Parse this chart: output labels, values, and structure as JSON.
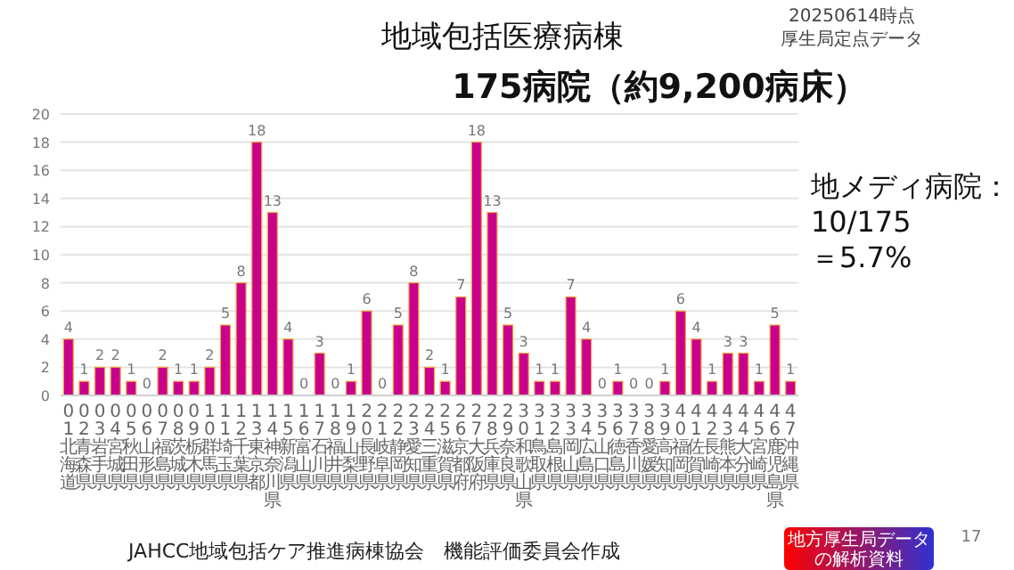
{
  "chart_data": {
    "type": "bar",
    "title": "地域包括医療病棟",
    "subtitle": "175病院（約9,200病床）",
    "categories": [
      "01北海道",
      "02青森県",
      "03岩手県",
      "04宮城県",
      "05秋田県",
      "06山形県",
      "07福島県",
      "08茨城県",
      "09栃木県",
      "10群馬県",
      "11埼玉県",
      "12千葉県",
      "13東京都",
      "14神奈川県",
      "15新潟県",
      "16富山県",
      "17石川県",
      "18福井県",
      "19山梨県",
      "20長野県",
      "21岐阜県",
      "22静岡県",
      "23愛知県",
      "24三重県",
      "25滋賀県",
      "26京都府",
      "27大阪府",
      "28兵庫県",
      "29奈良県",
      "30和歌山県",
      "31鳥取県",
      "32島根県",
      "33岡山県",
      "34広島県",
      "35山口県",
      "36徳島県",
      "37香川県",
      "38愛媛県",
      "39高知県",
      "40福岡県",
      "41佐賀県",
      "42長崎県",
      "43熊本県",
      "44大分県",
      "45宮崎県",
      "46鹿児島県",
      "47沖縄県"
    ],
    "values": [
      4,
      1,
      2,
      2,
      1,
      0,
      2,
      1,
      1,
      2,
      5,
      8,
      18,
      13,
      4,
      0,
      3,
      0,
      1,
      6,
      0,
      5,
      8,
      2,
      1,
      7,
      18,
      13,
      5,
      3,
      1,
      1,
      7,
      4,
      0,
      1,
      0,
      0,
      1,
      6,
      4,
      1,
      3,
      3,
      1,
      5,
      1
    ],
    "color": "#c8008c",
    "ylim": [
      0,
      20
    ],
    "yticks": [
      0,
      2,
      4,
      6,
      8,
      10,
      12,
      14,
      16,
      18,
      20
    ],
    "grid": "y",
    "data_labels": true,
    "annotations": [
      "20250614時点",
      "厚生局定点データ",
      "地メディ病院：",
      "10/175",
      "＝5.7%",
      "地方厚生局データ",
      "の解析資料",
      "JAHCC地域包括ケア推進病棟協会　機能評価委員会作成",
      "17"
    ]
  }
}
